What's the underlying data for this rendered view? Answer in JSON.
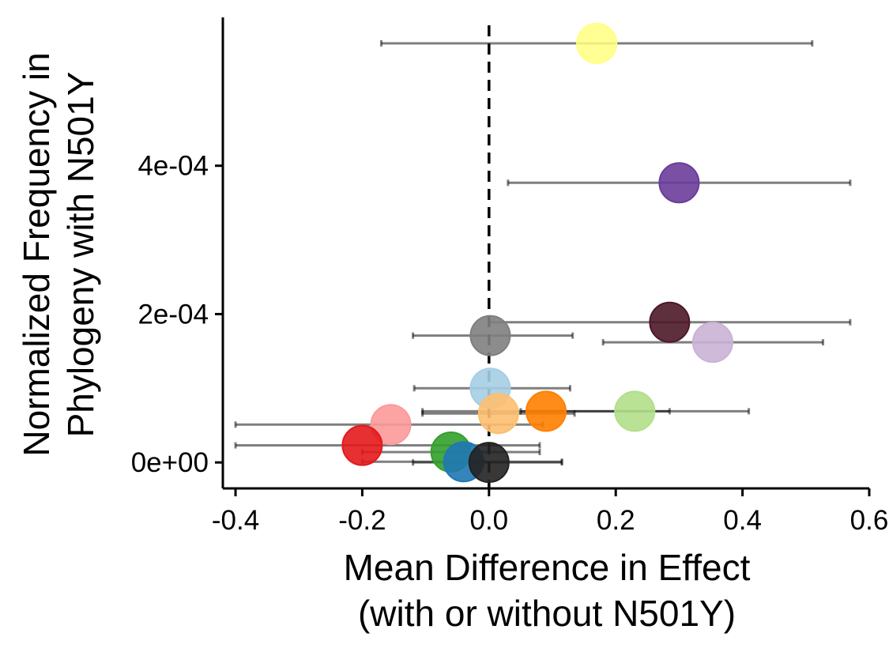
{
  "chart_data": {
    "type": "scatter",
    "title": "",
    "xlabel_lines": [
      "Mean Difference in Effect",
      "(with or without N501Y)"
    ],
    "ylabel_lines": [
      "Normalized Frequency in",
      "Phylogeny with N501Y"
    ],
    "xlim": [
      -0.42,
      0.6
    ],
    "ylim": [
      -3.5e-05,
      0.0006
    ],
    "x_ticks": [
      {
        "value": -0.4,
        "label": "-0.4"
      },
      {
        "value": -0.2,
        "label": "-0.2"
      },
      {
        "value": 0.0,
        "label": "0.0"
      },
      {
        "value": 0.2,
        "label": "0.2"
      },
      {
        "value": 0.4,
        "label": "0.4"
      },
      {
        "value": 0.6,
        "label": "0.6"
      }
    ],
    "y_ticks": [
      {
        "value": 0.0,
        "label": "0e+00"
      },
      {
        "value": 0.0002,
        "label": "2e-04"
      },
      {
        "value": 0.0004,
        "label": "4e-04"
      }
    ],
    "reference_line_x": 0.0,
    "grid": false,
    "legend": "none",
    "points": [
      {
        "x": 0.17,
        "y": 0.000565,
        "xmin": -0.17,
        "xmax": 0.51,
        "color": "#FFFF80",
        "opacity": 0.85
      },
      {
        "x": 0.3,
        "y": 0.000377,
        "xmin": 0.03,
        "xmax": 0.57,
        "color": "#6A3D9A",
        "opacity": 0.9
      },
      {
        "x": 0.285,
        "y": 0.000189,
        "xmin": 0.0,
        "xmax": 0.57,
        "color": "#4D1828",
        "opacity": 0.9
      },
      {
        "x": 0.353,
        "y": 0.000162,
        "xmin": 0.18,
        "xmax": 0.527,
        "color": "#CAB2D6",
        "opacity": 0.9
      },
      {
        "x": 0.002,
        "y": 0.000171,
        "xmin": -0.12,
        "xmax": 0.132,
        "color": "#7F7F7F",
        "opacity": 0.9
      },
      {
        "x": 0.002,
        "y": 0.0001,
        "xmin": -0.118,
        "xmax": 0.128,
        "color": "#A6CEE3",
        "opacity": 0.9
      },
      {
        "x": 0.23,
        "y": 6.9e-05,
        "xmin": 0.05,
        "xmax": 0.41,
        "color": "#B2DF8A",
        "opacity": 0.9
      },
      {
        "x": 0.09,
        "y": 6.9e-05,
        "xmin": -0.105,
        "xmax": 0.285,
        "color": "#FF7F00",
        "opacity": 0.9
      },
      {
        "x": 0.015,
        "y": 6.6e-05,
        "xmin": -0.105,
        "xmax": 0.135,
        "color": "#FDBF6F",
        "opacity": 0.9
      },
      {
        "x": -0.155,
        "y": 5.1e-05,
        "xmin": -0.4,
        "xmax": 0.085,
        "color": "#FB9A99",
        "opacity": 0.9
      },
      {
        "x": -0.2,
        "y": 2.3e-05,
        "xmin": -0.4,
        "xmax": 0.08,
        "color": "#E31A1C",
        "opacity": 0.9
      },
      {
        "x": -0.06,
        "y": 1.4e-05,
        "xmin": -0.2,
        "xmax": 0.08,
        "color": "#33A02C",
        "opacity": 0.9
      },
      {
        "x": -0.04,
        "y": 1e-06,
        "xmin": -0.2,
        "xmax": 0.115,
        "color": "#1F78B4",
        "opacity": 0.9
      },
      {
        "x": 0.0,
        "y": 0.0,
        "xmin": -0.12,
        "xmax": 0.115,
        "color": "#222222",
        "opacity": 0.9
      }
    ]
  }
}
